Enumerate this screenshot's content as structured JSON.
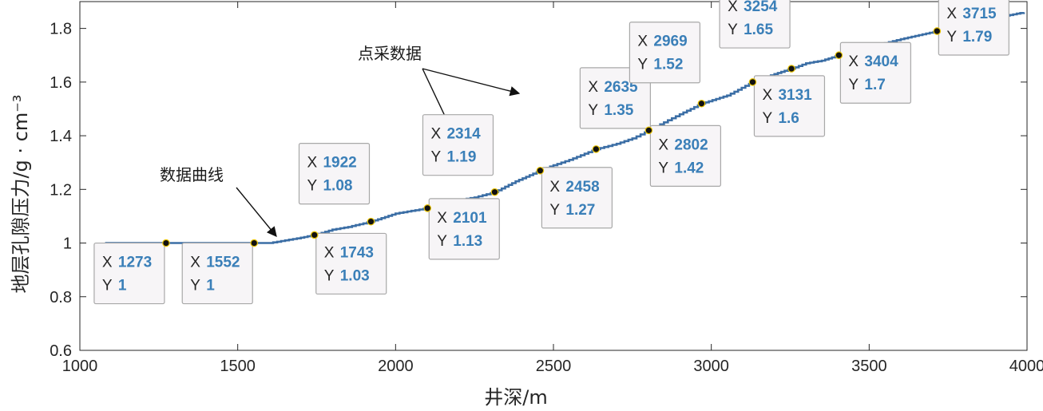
{
  "chart_data": {
    "type": "line",
    "xlabel": "井深/m",
    "ylabel": "地层孔隙压力/g · cm⁻³",
    "xlim": [
      1000,
      4000
    ],
    "ylim": [
      0.6,
      1.9
    ],
    "x_ticks": [
      "1000",
      "1500",
      "2000",
      "2500",
      "3000",
      "3500",
      "4000"
    ],
    "y_ticks": [
      "0.6",
      "0.8",
      "1",
      "1.2",
      "1.4",
      "1.6",
      "1.8"
    ],
    "grid": false,
    "line_color": "#3b6ea5",
    "series": [
      {
        "x": [
          1080,
          1273,
          1400,
          1552,
          1600,
          1650,
          1700,
          1743,
          1800,
          1850,
          1922,
          2000,
          2050,
          2101,
          2150,
          2200,
          2250,
          2314,
          2380,
          2458,
          2500,
          2550,
          2635,
          2700,
          2750,
          2802,
          2850,
          2900,
          2969,
          3050,
          3131,
          3200,
          3254,
          3300,
          3350,
          3404,
          3500,
          3600,
          3715,
          3800,
          3900,
          3990
        ],
        "y": [
          1.0,
          1.0,
          1.0,
          1.0,
          1.0,
          1.01,
          1.02,
          1.03,
          1.05,
          1.06,
          1.08,
          1.11,
          1.12,
          1.13,
          1.15,
          1.16,
          1.17,
          1.19,
          1.23,
          1.27,
          1.29,
          1.31,
          1.35,
          1.37,
          1.39,
          1.42,
          1.45,
          1.48,
          1.52,
          1.55,
          1.6,
          1.63,
          1.65,
          1.67,
          1.68,
          1.7,
          1.73,
          1.76,
          1.79,
          1.82,
          1.84,
          1.86
        ]
      }
    ],
    "datatips": [
      {
        "x": "1273",
        "y": "1"
      },
      {
        "x": "1552",
        "y": "1"
      },
      {
        "x": "1743",
        "y": "1.03"
      },
      {
        "x": "1922",
        "y": "1.08"
      },
      {
        "x": "2101",
        "y": "1.13"
      },
      {
        "x": "2314",
        "y": "1.19"
      },
      {
        "x": "2458",
        "y": "1.27"
      },
      {
        "x": "2635",
        "y": "1.35"
      },
      {
        "x": "2802",
        "y": "1.42"
      },
      {
        "x": "2969",
        "y": "1.52"
      },
      {
        "x": "3131",
        "y": "1.6"
      },
      {
        "x": "3254",
        "y": "1.65"
      },
      {
        "x": "3404",
        "y": "1.7"
      },
      {
        "x": "3715",
        "y": "1.79"
      }
    ],
    "annotations": [
      "数据曲线",
      "点采数据"
    ],
    "tip_key_x": "X",
    "tip_key_y": "Y"
  }
}
